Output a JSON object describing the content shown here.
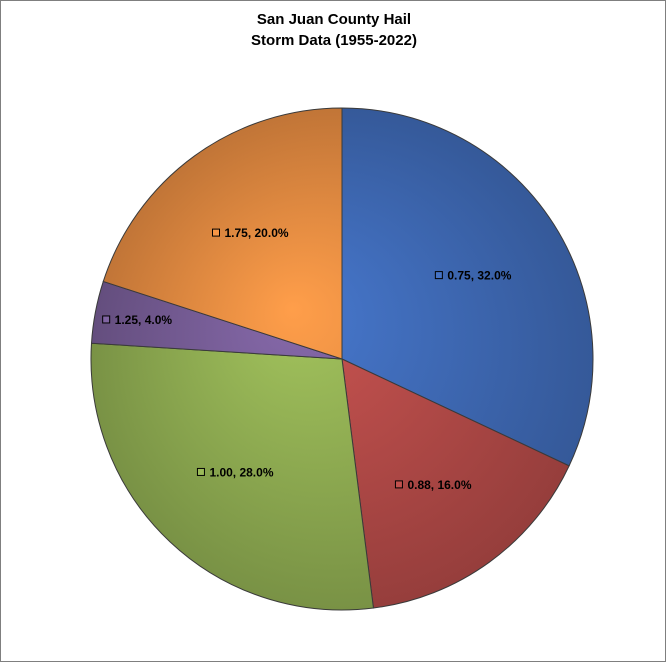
{
  "chart_data": {
    "type": "pie",
    "title_lines": [
      "San Juan County Hail",
      "Storm Data (1955-2022)"
    ],
    "slices": [
      {
        "category": "0.75",
        "percent": 32.0,
        "label": "0.75, 32.0%",
        "color": "#4472C4"
      },
      {
        "category": "0.88",
        "percent": 16.0,
        "label": "0.88, 16.0%",
        "color": "#C0504D"
      },
      {
        "category": "1.00",
        "percent": 28.0,
        "label": "1.00, 28.0%",
        "color": "#9BBB59"
      },
      {
        "category": "1.25",
        "percent": 4.0,
        "label": "1.25, 4.0%",
        "color": "#8064A2"
      },
      {
        "category": "1.75",
        "percent": 20.0,
        "label": "1.75, 20.0%",
        "color": "#F79646"
      }
    ],
    "start_angle_deg": 0,
    "direction": "clockwise",
    "legend": "none",
    "label_style": "inside with legend key"
  }
}
